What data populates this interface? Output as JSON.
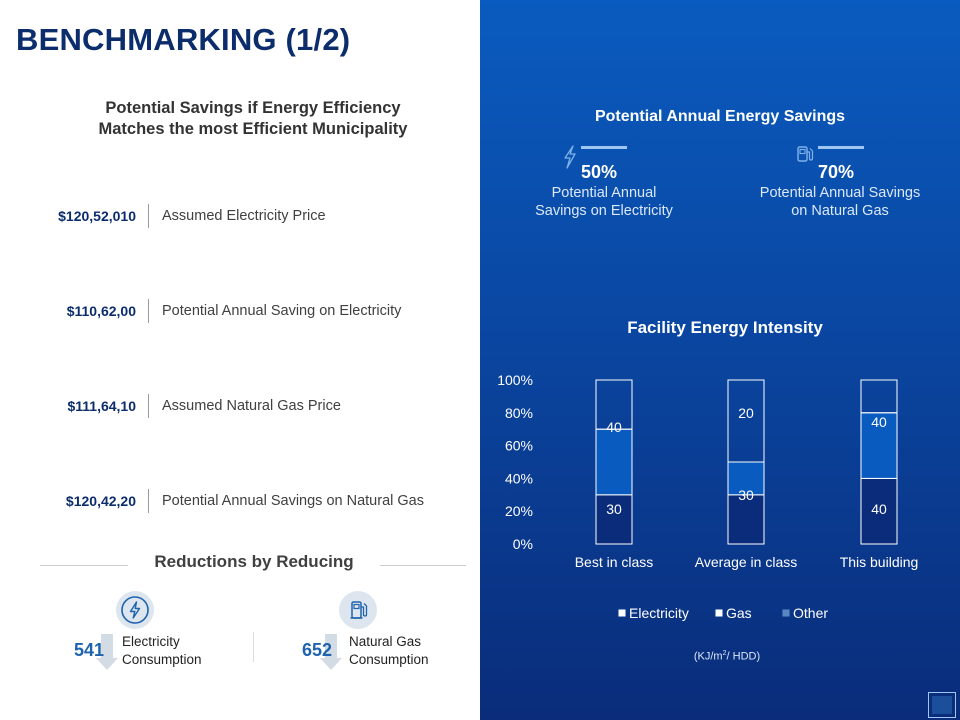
{
  "title": "BENCHMARKING  (1/2)",
  "left": {
    "subtitle_line1": "Potential Savings if Energy Efficiency",
    "subtitle_line2": "Matches the most Efficient Municipality",
    "metrics": [
      {
        "value": "$120,52,010",
        "label": "Assumed Electricity Price"
      },
      {
        "value": "$110,62,00",
        "label": "Potential Annual Saving on Electricity"
      },
      {
        "value": "$111,64,10",
        "label": "Assumed Natural Gas Price"
      },
      {
        "value": "$120,42,20",
        "label": "Potential Annual Savings on Natural Gas"
      }
    ],
    "reductions": {
      "title": "Reductions by Reducing",
      "items": [
        {
          "number": "541",
          "label_line1": "Electricity",
          "label_line2": "Consumption",
          "icon": "lightning-bolt-icon"
        },
        {
          "number": "652",
          "label_line1": "Natural Gas",
          "label_line2": "Consumption",
          "icon": "gas-pump-icon"
        }
      ]
    }
  },
  "right": {
    "savings_title": "Potential Annual Energy Savings",
    "stats": [
      {
        "percent": "50%",
        "line1": "Potential Annual",
        "line2": "Savings on Electricity",
        "icon": "lightning-bolt-icon"
      },
      {
        "percent": "70%",
        "line1": "Potential Annual Savings",
        "line2": "on Natural Gas",
        "icon": "gas-pump-icon"
      }
    ],
    "unit_prefix": "(KJ/m",
    "unit_sup": "2",
    "unit_suffix": "/ HDD)"
  },
  "colors": {
    "title": "#0b2d6b",
    "accent": "#1e63ad",
    "panel_top": "#0a5bbf",
    "panel_bottom": "#0a2c7a",
    "electricity": "#0a2c7a",
    "gas": "#0a5bbf",
    "other": "#1b4f9a",
    "bar_border": "#ffffff"
  },
  "chart_data": {
    "type": "bar",
    "stacked": true,
    "title": "Facility Energy Intensity",
    "categories": [
      "Best in class",
      "Average in class",
      "This building"
    ],
    "series": [
      {
        "name": "Electricity",
        "values": [
          30,
          30,
          40
        ],
        "color": "#0a2c7a"
      },
      {
        "name": "Gas",
        "values": [
          40,
          20,
          40
        ],
        "color": "#0a5bbf"
      },
      {
        "name": "Other",
        "values": [
          30,
          50,
          20
        ],
        "color": "#1b4f9a"
      }
    ],
    "data_labels": [
      [
        "30",
        "40"
      ],
      [
        "30",
        "20"
      ],
      [
        "40",
        "40"
      ]
    ],
    "ylim": [
      0,
      100
    ],
    "yticks": [
      "0%",
      "20%",
      "40%",
      "60%",
      "80%",
      "100%"
    ],
    "legend": "bottom",
    "grid": false
  }
}
